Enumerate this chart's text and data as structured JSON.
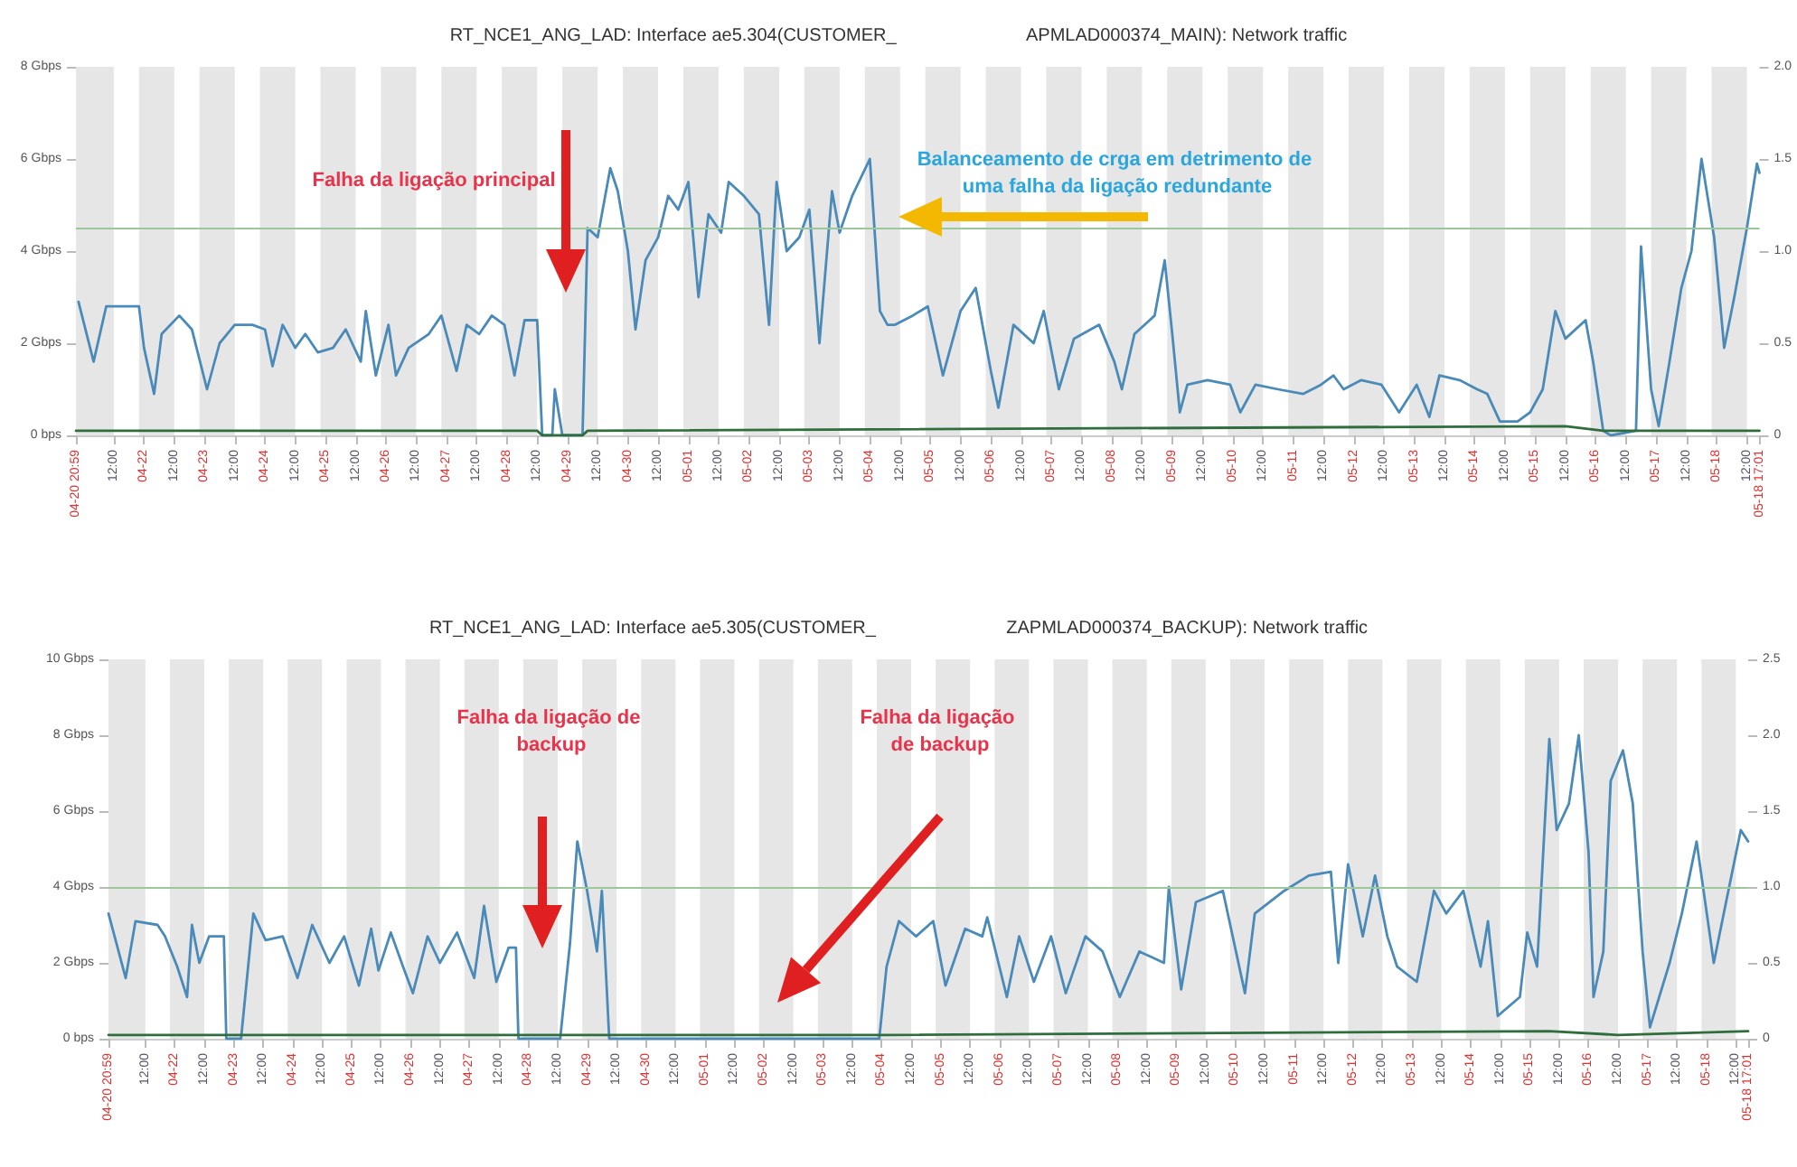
{
  "chart_data": [
    {
      "type": "line",
      "title": "RT_NCE1_ANG_LAD: Interface ae5.304(CUSTOMER_                          APMLAD000374_MAIN): Network traffic",
      "marker": "none",
      "line_style": "solid",
      "xlim": [
        "--04-20T20:59",
        "--05-18T17:01"
      ],
      "xticks": [
        {
          "value": "--04-20T20:59",
          "label": "04-20 20:59"
        },
        {
          "value": "--04-21T12:00",
          "label": "12:00"
        },
        {
          "value": "--04-22T00:00",
          "label": "04-22"
        },
        {
          "value": "--04-22T12:00",
          "label": "12:00"
        },
        {
          "value": "--04-23T00:00",
          "label": "04-23"
        },
        {
          "value": "--04-23T12:00",
          "label": "12:00"
        },
        {
          "value": "--04-24T00:00",
          "label": "04-24"
        },
        {
          "value": "--04-24T12:00",
          "label": "12:00"
        },
        {
          "value": "--04-25T00:00",
          "label": "04-25"
        },
        {
          "value": "--04-25T12:00",
          "label": "12:00"
        },
        {
          "value": "--04-26T00:00",
          "label": "04-26"
        },
        {
          "value": "--04-26T12:00",
          "label": "12:00"
        },
        {
          "value": "--04-27T00:00",
          "label": "04-27"
        },
        {
          "value": "--04-27T12:00",
          "label": "12:00"
        },
        {
          "value": "--04-28T00:00",
          "label": "04-28"
        },
        {
          "value": "--04-28T12:00",
          "label": "12:00"
        },
        {
          "value": "--04-29T00:00",
          "label": "04-29"
        },
        {
          "value": "--04-29T12:00",
          "label": "12:00"
        },
        {
          "value": "--04-30T00:00",
          "label": "04-30"
        },
        {
          "value": "--04-30T12:00",
          "label": "12:00"
        },
        {
          "value": "--05-01T00:00",
          "label": "05-01"
        },
        {
          "value": "--05-01T12:00",
          "label": "12:00"
        },
        {
          "value": "--05-02T00:00",
          "label": "05-02"
        },
        {
          "value": "--05-02T12:00",
          "label": "12:00"
        },
        {
          "value": "--05-03T00:00",
          "label": "05-03"
        },
        {
          "value": "--05-03T12:00",
          "label": "12:00"
        },
        {
          "value": "--05-04T00:00",
          "label": "05-04"
        },
        {
          "value": "--05-04T12:00",
          "label": "12:00"
        },
        {
          "value": "--05-05T00:00",
          "label": "05-05"
        },
        {
          "value": "--05-05T12:00",
          "label": "12:00"
        },
        {
          "value": "--05-06T00:00",
          "label": "05-06"
        },
        {
          "value": "--05-06T12:00",
          "label": "12:00"
        },
        {
          "value": "--05-07T00:00",
          "label": "05-07"
        },
        {
          "value": "--05-07T12:00",
          "label": "12:00"
        },
        {
          "value": "--05-08T00:00",
          "label": "05-08"
        },
        {
          "value": "--05-08T12:00",
          "label": "12:00"
        },
        {
          "value": "--05-09T00:00",
          "label": "05-09"
        },
        {
          "value": "--05-09T12:00",
          "label": "12:00"
        },
        {
          "value": "--05-10T00:00",
          "label": "05-10"
        },
        {
          "value": "--05-10T12:00",
          "label": "12:00"
        },
        {
          "value": "--05-11T00:00",
          "label": "05-11"
        },
        {
          "value": "--05-11T12:00",
          "label": "12:00"
        },
        {
          "value": "--05-12T00:00",
          "label": "05-12"
        },
        {
          "value": "--05-12T12:00",
          "label": "12:00"
        },
        {
          "value": "--05-13T00:00",
          "label": "05-13"
        },
        {
          "value": "--05-13T12:00",
          "label": "12:00"
        },
        {
          "value": "--05-14T00:00",
          "label": "05-14"
        },
        {
          "value": "--05-14T12:00",
          "label": "12:00"
        },
        {
          "value": "--05-15T00:00",
          "label": "05-15"
        },
        {
          "value": "--05-15T12:00",
          "label": "12:00"
        },
        {
          "value": "--05-16T00:00",
          "label": "05-16"
        },
        {
          "value": "--05-16T12:00",
          "label": "12:00"
        },
        {
          "value": "--05-17T00:00",
          "label": "05-17"
        },
        {
          "value": "--05-17T12:00",
          "label": "12:00"
        },
        {
          "value": "--05-18T00:00",
          "label": "05-18"
        },
        {
          "value": "--05-18T12:00",
          "label": "12:00"
        },
        {
          "value": "--05-18T17:01",
          "label": "05-18 17:01"
        }
      ],
      "ylim": [
        0,
        8
      ],
      "yticks": [
        {
          "value": 0,
          "label": "0 bps"
        },
        {
          "value": 2,
          "label": "2 Gbps"
        },
        {
          "value": 4,
          "label": "4 Gbps"
        },
        {
          "value": 6,
          "label": "6 Gbps"
        },
        {
          "value": 8,
          "label": "8 Gbps"
        }
      ],
      "y2lim": [
        0,
        2
      ],
      "y2ticks": [
        {
          "value": 0,
          "label": "0"
        },
        {
          "value": 0.5,
          "label": "0.5"
        },
        {
          "value": 1,
          "label": "1.0"
        },
        {
          "value": 1.5,
          "label": "1.5"
        },
        {
          "value": 2,
          "label": "2.0"
        }
      ],
      "ref_lines": [
        {
          "axis": "y",
          "value": 4.5,
          "color": "#9cc79c"
        }
      ],
      "bands": [
        {
          "axis": "x",
          "from": "--04-20T21:00",
          "to": "--04-21T12:00",
          "color": "#e6e6e6"
        },
        {
          "axis": "x",
          "from": "--04-21T22:00",
          "to": "--04-22T12:00",
          "color": "#e6e6e6"
        },
        {
          "axis": "x",
          "from": "--04-22T22:00",
          "to": "--04-23T12:00",
          "color": "#e6e6e6"
        },
        {
          "axis": "x",
          "from": "--04-23T22:00",
          "to": "--04-24T12:00",
          "color": "#e6e6e6"
        },
        {
          "axis": "x",
          "from": "--04-24T22:00",
          "to": "--04-25T12:00",
          "color": "#e6e6e6"
        },
        {
          "axis": "x",
          "from": "--04-25T22:00",
          "to": "--04-26T12:00",
          "color": "#e6e6e6"
        },
        {
          "axis": "x",
          "from": "--04-26T22:00",
          "to": "--04-27T12:00",
          "color": "#e6e6e6"
        },
        {
          "axis": "x",
          "from": "--04-27T22:00",
          "to": "--04-28T12:00",
          "color": "#e6e6e6"
        },
        {
          "axis": "x",
          "from": "--04-28T22:00",
          "to": "--04-29T12:00",
          "color": "#e6e6e6"
        },
        {
          "axis": "x",
          "from": "--04-29T22:00",
          "to": "--04-30T12:00",
          "color": "#e6e6e6"
        },
        {
          "axis": "x",
          "from": "--04-30T22:00",
          "to": "--05-01T12:00",
          "color": "#e6e6e6"
        },
        {
          "axis": "x",
          "from": "--05-01T22:00",
          "to": "--05-02T12:00",
          "color": "#e6e6e6"
        },
        {
          "axis": "x",
          "from": "--05-02T22:00",
          "to": "--05-03T12:00",
          "color": "#e6e6e6"
        },
        {
          "axis": "x",
          "from": "--05-03T22:00",
          "to": "--05-04T12:00",
          "color": "#e6e6e6"
        },
        {
          "axis": "x",
          "from": "--05-04T22:00",
          "to": "--05-05T12:00",
          "color": "#e6e6e6"
        },
        {
          "axis": "x",
          "from": "--05-05T22:00",
          "to": "--05-06T12:00",
          "color": "#e6e6e6"
        },
        {
          "axis": "x",
          "from": "--05-06T22:00",
          "to": "--05-07T12:00",
          "color": "#e6e6e6"
        },
        {
          "axis": "x",
          "from": "--05-07T22:00",
          "to": "--05-08T12:00",
          "color": "#e6e6e6"
        },
        {
          "axis": "x",
          "from": "--05-08T22:00",
          "to": "--05-09T12:00",
          "color": "#e6e6e6"
        },
        {
          "axis": "x",
          "from": "--05-09T22:00",
          "to": "--05-10T12:00",
          "color": "#e6e6e6"
        },
        {
          "axis": "x",
          "from": "--05-10T22:00",
          "to": "--05-11T12:00",
          "color": "#e6e6e6"
        },
        {
          "axis": "x",
          "from": "--05-11T22:00",
          "to": "--05-12T12:00",
          "color": "#e6e6e6"
        },
        {
          "axis": "x",
          "from": "--05-12T22:00",
          "to": "--05-13T12:00",
          "color": "#e6e6e6"
        },
        {
          "axis": "x",
          "from": "--05-13T22:00",
          "to": "--05-14T12:00",
          "color": "#e6e6e6"
        },
        {
          "axis": "x",
          "from": "--05-14T22:00",
          "to": "--05-15T12:00",
          "color": "#e6e6e6"
        },
        {
          "axis": "x",
          "from": "--05-15T22:00",
          "to": "--05-16T12:00",
          "color": "#e6e6e6"
        },
        {
          "axis": "x",
          "from": "--05-16T22:00",
          "to": "--05-17T12:00",
          "color": "#e6e6e6"
        },
        {
          "axis": "x",
          "from": "--05-17T22:00",
          "to": "--05-18T12:00",
          "color": "#e6e6e6"
        }
      ],
      "annotations": [
        "Falha da ligação principal",
        "Balanceamento de crga em detrimento de uma falha da ligação redundante"
      ],
      "series": [
        {
          "color": "#4a8ab8",
          "x": [
            "--04-20T22:00",
            "--04-21T04:00",
            "--04-21T09:00",
            "--04-21T15:00",
            "--04-21T22:00",
            "--04-22T00:00",
            "--04-22T04:00",
            "--04-22T07:00",
            "--04-22T14:00",
            "--04-22T19:00",
            "--04-23T01:00",
            "--04-23T06:00",
            "--04-23T12:00",
            "--04-23T19:00",
            "--04-24T00:00",
            "--04-24T03:00",
            "--04-24T07:00",
            "--04-24T12:00",
            "--04-24T16:00",
            "--04-24T21:00",
            "--04-25T03:00",
            "--04-25T08:00",
            "--04-25T14:00",
            "--04-25T16:00",
            "--04-25T20:00",
            "--04-26T01:00",
            "--04-26T04:00",
            "--04-26T09:00",
            "--04-26T17:00",
            "--04-26T22:00",
            "--04-27T04:00",
            "--04-27T08:00",
            "--04-27T13:00",
            "--04-27T18:00",
            "--04-27T23:00",
            "--04-28T03:00",
            "--04-28T07:00",
            "--04-28T12:00",
            "--04-28T14:00",
            "--04-28T18:00",
            "--04-28T19:00",
            "--04-28T22:00",
            "--04-29T06:00",
            "--04-29T08:00",
            "--04-29T12:00",
            "--04-29T17:00",
            "--04-29T20:00",
            "--04-30T00:00",
            "--04-30T03:00",
            "--04-30T07:00",
            "--04-30T12:00",
            "--04-30T16:00",
            "--04-30T20:00",
            "--05-01T00:00",
            "--05-01T04:00",
            "--05-01T08:00",
            "--05-01T13:00",
            "--05-01T16:00",
            "--05-01T22:00",
            "--05-02T04:00",
            "--05-02T08:00",
            "--05-02T11:00",
            "--05-02T15:00",
            "--05-02T20:00",
            "--05-03T00:00",
            "--05-03T04:00",
            "--05-03T09:00",
            "--05-03T12:00",
            "--05-03T17:00",
            "--05-04T00:00",
            "--05-04T04:00",
            "--05-04T07:00",
            "--05-04T10:00",
            "--05-04T17:00",
            "--05-04T23:00",
            "--05-05T05:00",
            "--05-05T12:00",
            "--05-05T18:00",
            "--05-06T00:00",
            "--05-06T03:00",
            "--05-06T09:00",
            "--05-06T17:00",
            "--05-06T21:00",
            "--05-07T03:00",
            "--05-07T09:00",
            "--05-07T19:00",
            "--05-08T01:00",
            "--05-08T04:00",
            "--05-08T09:00",
            "--05-08T17:00",
            "--05-08T21:00",
            "--05-09T00:00",
            "--05-09T03:00",
            "--05-09T06:00",
            "--05-09T14:00",
            "--05-09T23:00",
            "--05-10T03:00",
            "--05-10T09:00",
            "--05-10T18:00",
            "--05-11T04:00",
            "--05-11T11:00",
            "--05-11T16:00",
            "--05-11T20:00",
            "--05-12T03:00",
            "--05-12T11:00",
            "--05-12T18:00",
            "--05-13T01:00",
            "--05-13T06:00",
            "--05-13T10:00",
            "--05-13T18:00",
            "--05-14T01:00",
            "--05-14T05:00",
            "--05-14T10:00",
            "--05-14T17:00",
            "--05-14T22:00",
            "--05-15T03:00",
            "--05-15T08:00",
            "--05-15T12:00",
            "--05-15T20:00",
            "--05-15T23:00",
            "--05-16T03:00",
            "--05-16T06:00",
            "--05-16T16:00",
            "--05-16T18:00",
            "--05-16T22:00",
            "--05-17T01:00",
            "--05-17T05:00",
            "--05-17T10:00",
            "--05-17T14:00",
            "--05-17T18:00",
            "--05-17T23:00",
            "--05-18T03:00",
            "--05-18T07:00",
            "--05-18T12:00",
            "--05-18T16:00",
            "--05-18T17:00"
          ],
          "values": [
            2.9,
            1.6,
            2.8,
            2.8,
            2.8,
            1.9,
            0.9,
            2.2,
            2.6,
            2.3,
            1.0,
            2.0,
            2.4,
            2.4,
            2.3,
            1.5,
            2.4,
            1.9,
            2.2,
            1.8,
            1.9,
            2.3,
            1.6,
            2.7,
            1.3,
            2.4,
            1.3,
            1.9,
            2.2,
            2.6,
            1.4,
            2.4,
            2.2,
            2.6,
            2.4,
            1.3,
            2.5,
            2.5,
            0,
            0,
            1.0,
            0,
            0,
            4.5,
            4.3,
            5.8,
            5.3,
            4.0,
            2.3,
            3.8,
            4.3,
            5.2,
            4.9,
            5.5,
            3.0,
            4.8,
            4.4,
            5.5,
            5.2,
            4.8,
            2.4,
            5.5,
            4.0,
            4.3,
            4.9,
            2.0,
            5.3,
            4.4,
            5.2,
            6.0,
            2.7,
            2.4,
            2.4,
            2.6,
            2.8,
            1.3,
            2.7,
            3.2,
            1.4,
            0.6,
            2.4,
            2.0,
            2.7,
            1.0,
            2.1,
            2.4,
            1.6,
            1.0,
            2.2,
            2.6,
            3.8,
            2.2,
            0.5,
            1.1,
            1.2,
            1.1,
            0.5,
            1.1,
            1.0,
            0.9,
            1.1,
            1.3,
            1.0,
            1.2,
            1.1,
            0.5,
            1.1,
            0.4,
            1.3,
            1.2,
            1.0,
            0.9,
            0.3,
            0.3,
            0.5,
            1.0,
            2.7,
            2.1,
            2.5,
            1.6,
            0.1,
            0,
            0.1,
            4.1,
            1.0,
            0.2,
            1.5,
            3.2,
            4.0,
            6.0,
            4.3,
            1.9,
            3.0,
            4.5,
            5.9,
            5.7
          ]
        },
        {
          "color": "#2f6e3c",
          "x": [
            "--04-20T21:00",
            "--04-28T12:00",
            "--04-28T14:00",
            "--04-29T06:00",
            "--04-29T08:00",
            "--05-15T12:00",
            "--05-16T03:00",
            "--05-18T17:00"
          ],
          "values": [
            0.1,
            0.1,
            0,
            0,
            0.1,
            0.2,
            0.1,
            0.1
          ]
        }
      ]
    },
    {
      "type": "line",
      "title": "RT_NCE1_ANG_LAD: Interface ae5.305(CUSTOMER_                          ZAPMLAD000374_BACKUP): Network traffic",
      "marker": "none",
      "line_style": "solid",
      "xlim": [
        "--04-20T20:59",
        "--05-18T17:01"
      ],
      "xticks": [
        {
          "value": "--04-20T20:59",
          "label": "04-20 20:59"
        },
        {
          "value": "--04-21T12:00",
          "label": "12:00"
        },
        {
          "value": "--04-22T00:00",
          "label": "04-22"
        },
        {
          "value": "--04-22T12:00",
          "label": "12:00"
        },
        {
          "value": "--04-23T00:00",
          "label": "04-23"
        },
        {
          "value": "--04-23T12:00",
          "label": "12:00"
        },
        {
          "value": "--04-24T00:00",
          "label": "04-24"
        },
        {
          "value": "--04-24T12:00",
          "label": "12:00"
        },
        {
          "value": "--04-25T00:00",
          "label": "04-25"
        },
        {
          "value": "--04-25T12:00",
          "label": "12:00"
        },
        {
          "value": "--04-26T00:00",
          "label": "04-26"
        },
        {
          "value": "--04-26T12:00",
          "label": "12:00"
        },
        {
          "value": "--04-27T00:00",
          "label": "04-27"
        },
        {
          "value": "--04-27T12:00",
          "label": "12:00"
        },
        {
          "value": "--04-28T00:00",
          "label": "04-28"
        },
        {
          "value": "--04-28T12:00",
          "label": "12:00"
        },
        {
          "value": "--04-29T00:00",
          "label": "04-29"
        },
        {
          "value": "--04-29T12:00",
          "label": "12:00"
        },
        {
          "value": "--04-30T00:00",
          "label": "04-30"
        },
        {
          "value": "--04-30T12:00",
          "label": "12:00"
        },
        {
          "value": "--05-01T00:00",
          "label": "05-01"
        },
        {
          "value": "--05-01T12:00",
          "label": "12:00"
        },
        {
          "value": "--05-02T00:00",
          "label": "05-02"
        },
        {
          "value": "--05-02T12:00",
          "label": "12:00"
        },
        {
          "value": "--05-03T00:00",
          "label": "05-03"
        },
        {
          "value": "--05-03T12:00",
          "label": "12:00"
        },
        {
          "value": "--05-04T00:00",
          "label": "05-04"
        },
        {
          "value": "--05-04T12:00",
          "label": "12:00"
        },
        {
          "value": "--05-05T00:00",
          "label": "05-05"
        },
        {
          "value": "--05-05T12:00",
          "label": "12:00"
        },
        {
          "value": "--05-06T00:00",
          "label": "05-06"
        },
        {
          "value": "--05-06T12:00",
          "label": "12:00"
        },
        {
          "value": "--05-07T00:00",
          "label": "05-07"
        },
        {
          "value": "--05-07T12:00",
          "label": "12:00"
        },
        {
          "value": "--05-08T00:00",
          "label": "05-08"
        },
        {
          "value": "--05-08T12:00",
          "label": "12:00"
        },
        {
          "value": "--05-09T00:00",
          "label": "05-09"
        },
        {
          "value": "--05-09T12:00",
          "label": "12:00"
        },
        {
          "value": "--05-10T00:00",
          "label": "05-10"
        },
        {
          "value": "--05-10T12:00",
          "label": "12:00"
        },
        {
          "value": "--05-11T00:00",
          "label": "05-11"
        },
        {
          "value": "--05-11T12:00",
          "label": "12:00"
        },
        {
          "value": "--05-12T00:00",
          "label": "05-12"
        },
        {
          "value": "--05-12T12:00",
          "label": "12:00"
        },
        {
          "value": "--05-13T00:00",
          "label": "05-13"
        },
        {
          "value": "--05-13T12:00",
          "label": "12:00"
        },
        {
          "value": "--05-14T00:00",
          "label": "05-14"
        },
        {
          "value": "--05-14T12:00",
          "label": "12:00"
        },
        {
          "value": "--05-15T00:00",
          "label": "05-15"
        },
        {
          "value": "--05-15T12:00",
          "label": "12:00"
        },
        {
          "value": "--05-16T00:00",
          "label": "05-16"
        },
        {
          "value": "--05-16T12:00",
          "label": "12:00"
        },
        {
          "value": "--05-17T00:00",
          "label": "05-17"
        },
        {
          "value": "--05-17T12:00",
          "label": "12:00"
        },
        {
          "value": "--05-18T00:00",
          "label": "05-18"
        },
        {
          "value": "--05-18T12:00",
          "label": "12:00"
        },
        {
          "value": "--05-18T17:01",
          "label": "05-18 17:01"
        }
      ],
      "ylim": [
        0,
        10
      ],
      "yticks": [
        {
          "value": 0,
          "label": "0 bps"
        },
        {
          "value": 2,
          "label": "2 Gbps"
        },
        {
          "value": 4,
          "label": "4 Gbps"
        },
        {
          "value": 6,
          "label": "6 Gbps"
        },
        {
          "value": 8,
          "label": "8 Gbps"
        },
        {
          "value": 10,
          "label": "10 Gbps"
        }
      ],
      "y2lim": [
        0,
        2.5
      ],
      "y2ticks": [
        {
          "value": 0,
          "label": "0"
        },
        {
          "value": 0.5,
          "label": "0.5"
        },
        {
          "value": 1,
          "label": "1.0"
        },
        {
          "value": 1.5,
          "label": "1.5"
        },
        {
          "value": 2,
          "label": "2.0"
        },
        {
          "value": 2.5,
          "label": "2.5"
        }
      ],
      "ref_lines": [
        {
          "axis": "y",
          "value": 4,
          "color": "#9cc79c"
        }
      ],
      "bands": [
        {
          "axis": "x",
          "from": "--04-20T21:00",
          "to": "--04-21T12:00",
          "color": "#e6e6e6"
        },
        {
          "axis": "x",
          "from": "--04-21T22:00",
          "to": "--04-22T12:00",
          "color": "#e6e6e6"
        },
        {
          "axis": "x",
          "from": "--04-22T22:00",
          "to": "--04-23T12:00",
          "color": "#e6e6e6"
        },
        {
          "axis": "x",
          "from": "--04-23T22:00",
          "to": "--04-24T12:00",
          "color": "#e6e6e6"
        },
        {
          "axis": "x",
          "from": "--04-24T22:00",
          "to": "--04-25T12:00",
          "color": "#e6e6e6"
        },
        {
          "axis": "x",
          "from": "--04-25T22:00",
          "to": "--04-26T12:00",
          "color": "#e6e6e6"
        },
        {
          "axis": "x",
          "from": "--04-26T22:00",
          "to": "--04-27T12:00",
          "color": "#e6e6e6"
        },
        {
          "axis": "x",
          "from": "--04-27T22:00",
          "to": "--04-28T12:00",
          "color": "#e6e6e6"
        },
        {
          "axis": "x",
          "from": "--04-28T22:00",
          "to": "--04-29T12:00",
          "color": "#e6e6e6"
        },
        {
          "axis": "x",
          "from": "--04-29T22:00",
          "to": "--04-30T12:00",
          "color": "#e6e6e6"
        },
        {
          "axis": "x",
          "from": "--04-30T22:00",
          "to": "--05-01T12:00",
          "color": "#e6e6e6"
        },
        {
          "axis": "x",
          "from": "--05-01T22:00",
          "to": "--05-02T12:00",
          "color": "#e6e6e6"
        },
        {
          "axis": "x",
          "from": "--05-02T22:00",
          "to": "--05-03T12:00",
          "color": "#e6e6e6"
        },
        {
          "axis": "x",
          "from": "--05-03T22:00",
          "to": "--05-04T12:00",
          "color": "#e6e6e6"
        },
        {
          "axis": "x",
          "from": "--05-04T22:00",
          "to": "--05-05T12:00",
          "color": "#e6e6e6"
        },
        {
          "axis": "x",
          "from": "--05-05T22:00",
          "to": "--05-06T12:00",
          "color": "#e6e6e6"
        },
        {
          "axis": "x",
          "from": "--05-06T22:00",
          "to": "--05-07T12:00",
          "color": "#e6e6e6"
        },
        {
          "axis": "x",
          "from": "--05-07T22:00",
          "to": "--05-08T12:00",
          "color": "#e6e6e6"
        },
        {
          "axis": "x",
          "from": "--05-08T22:00",
          "to": "--05-09T12:00",
          "color": "#e6e6e6"
        },
        {
          "axis": "x",
          "from": "--05-09T22:00",
          "to": "--05-10T12:00",
          "color": "#e6e6e6"
        },
        {
          "axis": "x",
          "from": "--05-10T22:00",
          "to": "--05-11T12:00",
          "color": "#e6e6e6"
        },
        {
          "axis": "x",
          "from": "--05-11T22:00",
          "to": "--05-12T12:00",
          "color": "#e6e6e6"
        },
        {
          "axis": "x",
          "from": "--05-12T22:00",
          "to": "--05-13T12:00",
          "color": "#e6e6e6"
        },
        {
          "axis": "x",
          "from": "--05-13T22:00",
          "to": "--05-14T12:00",
          "color": "#e6e6e6"
        },
        {
          "axis": "x",
          "from": "--05-14T22:00",
          "to": "--05-15T12:00",
          "color": "#e6e6e6"
        },
        {
          "axis": "x",
          "from": "--05-15T22:00",
          "to": "--05-16T12:00",
          "color": "#e6e6e6"
        },
        {
          "axis": "x",
          "from": "--05-16T22:00",
          "to": "--05-17T12:00",
          "color": "#e6e6e6"
        },
        {
          "axis": "x",
          "from": "--05-17T22:00",
          "to": "--05-18T12:00",
          "color": "#e6e6e6"
        }
      ],
      "annotations": [
        "Falha da ligação de backup",
        "Falha da ligação de backup"
      ],
      "series": [
        {
          "color": "#4a8ab8",
          "x": [
            "--04-20T21:00",
            "--04-21T04:00",
            "--04-21T08:00",
            "--04-21T17:00",
            "--04-21T20:00",
            "--04-22T01:00",
            "--04-22T05:00",
            "--04-22T07:00",
            "--04-22T10:00",
            "--04-22T14:00",
            "--04-22T20:00",
            "--04-22T21:00",
            "--04-23T03:00",
            "--04-23T08:00",
            "--04-23T13:00",
            "--04-23T20:00",
            "--04-24T02:00",
            "--04-24T08:00",
            "--04-24T15:00",
            "--04-24T21:00",
            "--04-25T03:00",
            "--04-25T08:00",
            "--04-25T11:00",
            "--04-25T16:00",
            "--04-25T21:00",
            "--04-26T01:00",
            "--04-26T07:00",
            "--04-26T12:00",
            "--04-26T19:00",
            "--04-27T02:00",
            "--04-27T06:00",
            "--04-27T11:00",
            "--04-27T16:00",
            "--04-27T19:00",
            "--04-27T20:00",
            "--04-28T13:00",
            "--04-28T17:00",
            "--04-28T20:00",
            "--04-29T00:00",
            "--04-29T04:00",
            "--04-29T06:00",
            "--04-29T09:00",
            "--05-03T23:00",
            "--05-04T02:00",
            "--05-04T07:00",
            "--05-04T14:00",
            "--05-04T21:00",
            "--05-05T02:00",
            "--05-05T10:00",
            "--05-05T17:00",
            "--05-05T19:00",
            "--05-06T03:00",
            "--05-06T08:00",
            "--05-06T14:00",
            "--05-06T21:00",
            "--05-07T03:00",
            "--05-07T11:00",
            "--05-07T18:00",
            "--05-08T01:00",
            "--05-08T09:00",
            "--05-08T19:00",
            "--05-08T21:00",
            "--05-09T02:00",
            "--05-09T08:00",
            "--05-09T19:00",
            "--05-10T04:00",
            "--05-10T08:00",
            "--05-10T20:00",
            "--05-11T06:00",
            "--05-11T15:00",
            "--05-11T18:00",
            "--05-11T22:00",
            "--05-12T04:00",
            "--05-12T09:00",
            "--05-12T14:00",
            "--05-12T18:00",
            "--05-13T02:00",
            "--05-13T09:00",
            "--05-13T14:00",
            "--05-13T21:00",
            "--05-14T04:00",
            "--05-14T07:00",
            "--05-14T11:00",
            "--05-14T20:00",
            "--05-14T23:00",
            "--05-15T03:00",
            "--05-15T08:00",
            "--05-15T11:00",
            "--05-15T16:00",
            "--05-15T20:00",
            "--05-16T00:00",
            "--05-16T02:00",
            "--05-16T06:00",
            "--05-16T09:00",
            "--05-16T14:00",
            "--05-16T18:00",
            "--05-16T22:00",
            "--05-17T01:00",
            "--05-17T09:00",
            "--05-17T14:00",
            "--05-17T20:00",
            "--05-18T03:00",
            "--05-18T08:00",
            "--05-18T14:00",
            "--05-18T17:00"
          ],
          "values": [
            3.3,
            1.6,
            3.1,
            3.0,
            2.7,
            1.9,
            1.1,
            3.0,
            2.0,
            2.7,
            2.7,
            0,
            0,
            3.3,
            2.6,
            2.7,
            1.6,
            3.0,
            2.0,
            2.7,
            1.4,
            2.9,
            1.8,
            2.8,
            1.9,
            1.2,
            2.7,
            2.0,
            2.8,
            1.6,
            3.5,
            1.5,
            2.4,
            2.4,
            0,
            0,
            2.5,
            5.2,
            3.9,
            2.3,
            3.9,
            0,
            0,
            1.9,
            3.1,
            2.7,
            3.1,
            1.4,
            2.9,
            2.7,
            3.2,
            1.1,
            2.7,
            1.5,
            2.7,
            1.2,
            2.7,
            2.3,
            1.1,
            2.3,
            2.0,
            4.0,
            1.3,
            3.6,
            3.9,
            1.2,
            3.3,
            3.9,
            4.3,
            4.4,
            2.0,
            4.6,
            2.7,
            4.3,
            2.7,
            1.9,
            1.5,
            3.9,
            3.3,
            3.9,
            1.9,
            3.1,
            0.6,
            1.1,
            2.8,
            1.9,
            7.9,
            5.5,
            6.2,
            8.0,
            4.9,
            1.1,
            2.3,
            6.8,
            7.6,
            6.2,
            2.3,
            0.3,
            2.0,
            3.3,
            5.2,
            2.0,
            3.6,
            5.5,
            5.2
          ]
        },
        {
          "color": "#2f6e3c",
          "x": [
            "--04-20T21:00",
            "--04-28T12:00",
            "--05-04T00:00",
            "--05-15T08:00",
            "--05-16T12:00",
            "--05-18T17:00"
          ],
          "values": [
            0.1,
            0.1,
            0.1,
            0.2,
            0.1,
            0.2
          ]
        }
      ]
    }
  ]
}
